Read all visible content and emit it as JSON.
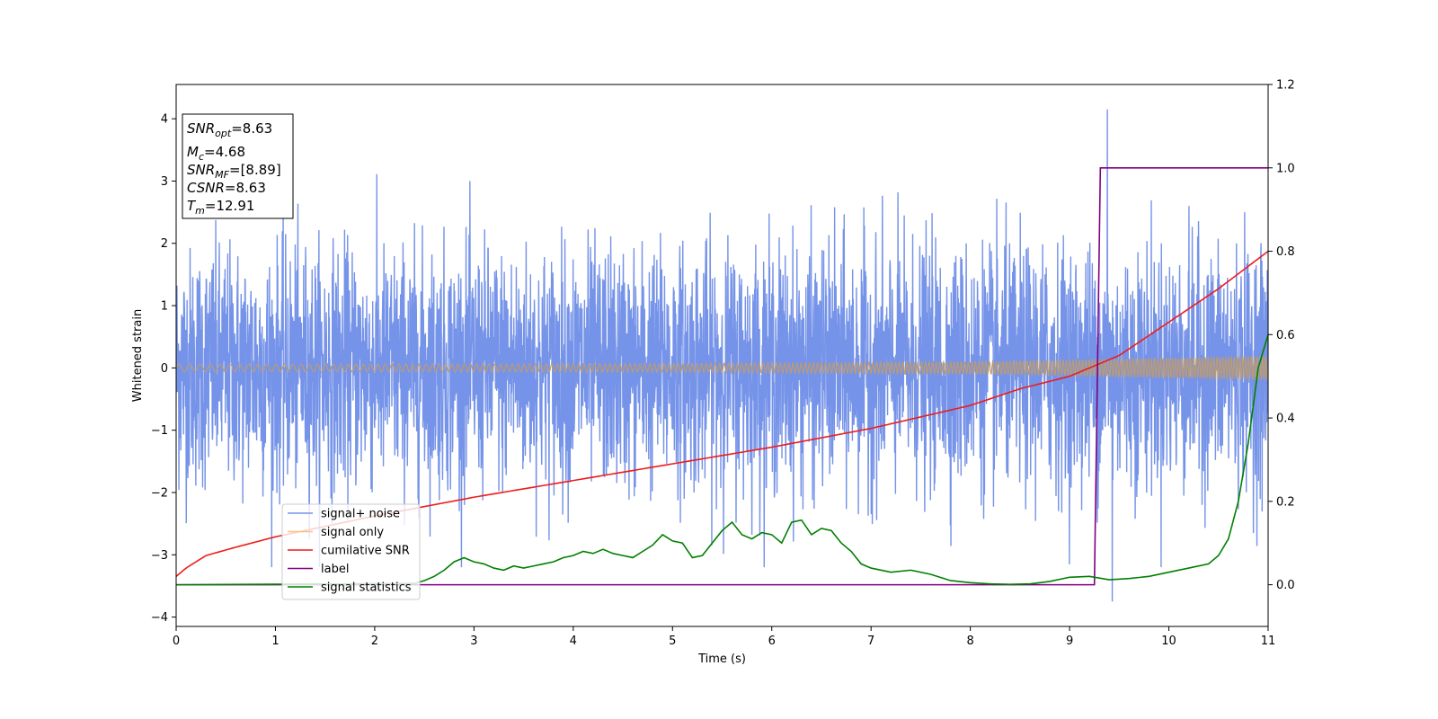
{
  "chart_data": {
    "type": "line",
    "xlabel": "Time (s)",
    "ylabel": "Whitened strain",
    "xlim": [
      0,
      11
    ],
    "ylim_left": [
      -4.15,
      4.55
    ],
    "ylim_right": [
      -0.1,
      1.2
    ],
    "x_ticks": [
      0,
      1,
      2,
      3,
      4,
      5,
      6,
      7,
      8,
      9,
      10,
      11
    ],
    "y_ticks_left": [
      -4,
      -3,
      -2,
      -1,
      0,
      1,
      2,
      3,
      4
    ],
    "y_ticks_right": [
      0.0,
      0.2,
      0.4,
      0.6,
      0.8,
      1.0,
      1.2
    ],
    "grid": false,
    "legend_position": "lower-left",
    "annotation": {
      "lines": [
        {
          "base": "SNR",
          "sub": "opt",
          "value": "=8.63"
        },
        {
          "base": "M",
          "sub": "c",
          "value": "=4.68"
        },
        {
          "base": "SNR",
          "sub": "MF",
          "value": "=[8.89]"
        },
        {
          "base": "CSNR",
          "sub": "",
          "value": "=8.63"
        },
        {
          "base": "T",
          "sub": "m",
          "value": "=12.91"
        }
      ]
    },
    "series": [
      {
        "name": "signal+ noise",
        "axis": "left",
        "color": "#7593e8",
        "noise": {
          "sigma": 0.95,
          "max_peak": 4.15,
          "min_peak": -3.75,
          "samples": 4000
        }
      },
      {
        "name": "signal only",
        "axis": "left",
        "color": "#bd9b73",
        "envelope": {
          "x": [
            0,
            5,
            8,
            9,
            10,
            11
          ],
          "amp": [
            0.06,
            0.07,
            0.1,
            0.13,
            0.17,
            0.2
          ]
        }
      },
      {
        "name": "cumilative SNR",
        "axis": "right",
        "color": "#ee1c1c",
        "x": [
          0,
          0.1,
          0.3,
          0.6,
          1,
          1.5,
          2,
          3,
          4,
          5,
          6,
          7,
          8,
          8.5,
          9,
          9.5,
          10,
          10.5,
          11
        ],
        "values": [
          0.02,
          0.04,
          0.07,
          0.09,
          0.115,
          0.14,
          0.165,
          0.21,
          0.25,
          0.29,
          0.33,
          0.375,
          0.43,
          0.47,
          0.5,
          0.55,
          0.63,
          0.71,
          0.8
        ]
      },
      {
        "name": "label",
        "axis": "right",
        "color": "#800080",
        "x": [
          0,
          9.25,
          9.31,
          11
        ],
        "values": [
          0,
          0,
          1,
          1
        ]
      },
      {
        "name": "signal statistics",
        "axis": "right",
        "color": "#008000",
        "x": [
          0,
          2.4,
          2.5,
          2.6,
          2.7,
          2.8,
          2.9,
          3.0,
          3.1,
          3.2,
          3.3,
          3.4,
          3.5,
          3.6,
          3.7,
          3.8,
          3.9,
          4.0,
          4.1,
          4.2,
          4.3,
          4.4,
          4.5,
          4.6,
          4.7,
          4.8,
          4.9,
          5.0,
          5.1,
          5.2,
          5.3,
          5.4,
          5.5,
          5.6,
          5.7,
          5.8,
          5.9,
          6.0,
          6.1,
          6.2,
          6.3,
          6.4,
          6.5,
          6.6,
          6.7,
          6.8,
          6.9,
          7.0,
          7.2,
          7.4,
          7.6,
          7.8,
          8.0,
          8.2,
          8.4,
          8.6,
          8.8,
          9.0,
          9.2,
          9.4,
          9.6,
          9.8,
          10.0,
          10.2,
          10.4,
          10.5,
          10.6,
          10.7,
          10.8,
          10.9,
          11.0
        ],
        "values": [
          0,
          0.003,
          0.01,
          0.02,
          0.035,
          0.055,
          0.065,
          0.055,
          0.05,
          0.04,
          0.035,
          0.045,
          0.04,
          0.045,
          0.05,
          0.055,
          0.065,
          0.07,
          0.08,
          0.075,
          0.085,
          0.075,
          0.07,
          0.065,
          0.08,
          0.095,
          0.12,
          0.105,
          0.1,
          0.065,
          0.07,
          0.1,
          0.13,
          0.15,
          0.12,
          0.11,
          0.125,
          0.12,
          0.1,
          0.15,
          0.155,
          0.12,
          0.135,
          0.13,
          0.1,
          0.08,
          0.05,
          0.04,
          0.03,
          0.035,
          0.025,
          0.01,
          0.005,
          0.002,
          0.001,
          0.002,
          0.008,
          0.018,
          0.02,
          0.012,
          0.015,
          0.02,
          0.03,
          0.04,
          0.05,
          0.07,
          0.11,
          0.2,
          0.34,
          0.52,
          0.6
        ]
      }
    ]
  }
}
